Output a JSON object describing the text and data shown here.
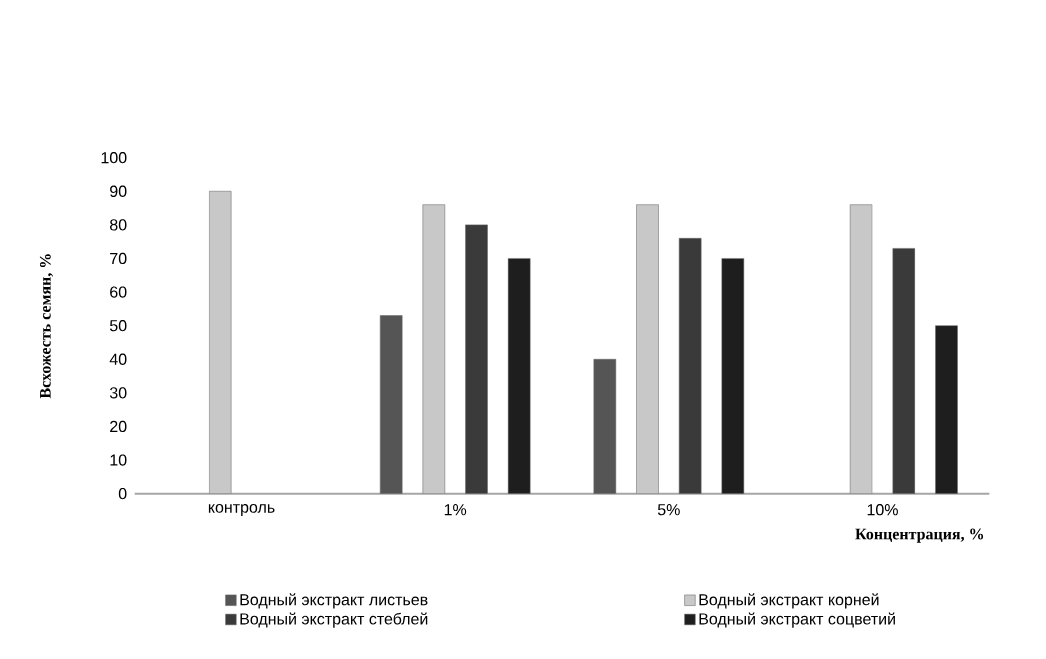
{
  "chart_data": {
    "type": "bar",
    "xlabel": "Концентрация, %",
    "ylabel": "Всхожесть семян, %",
    "categories": [
      "контроль",
      "1%",
      "5%",
      "10%"
    ],
    "series": [
      {
        "name": "Водный экстракт листьев",
        "color": "#555555",
        "values": [
          null,
          53,
          40,
          null
        ]
      },
      {
        "name": "Водный экстракт корней",
        "color": "#c8c8c8",
        "values": [
          90,
          86,
          86,
          86
        ]
      },
      {
        "name": "Водный экстракт стеблей",
        "color": "#3a3a3a",
        "values": [
          null,
          80,
          76,
          73
        ]
      },
      {
        "name": "Водный экстракт соцветий",
        "color": "#1e1e1e",
        "values": [
          null,
          70,
          70,
          50
        ]
      }
    ],
    "ylim": [
      0,
      100
    ],
    "yticks": [
      0,
      10,
      20,
      30,
      40,
      50,
      60,
      70,
      80,
      90,
      100
    ],
    "legend": "bottom"
  }
}
